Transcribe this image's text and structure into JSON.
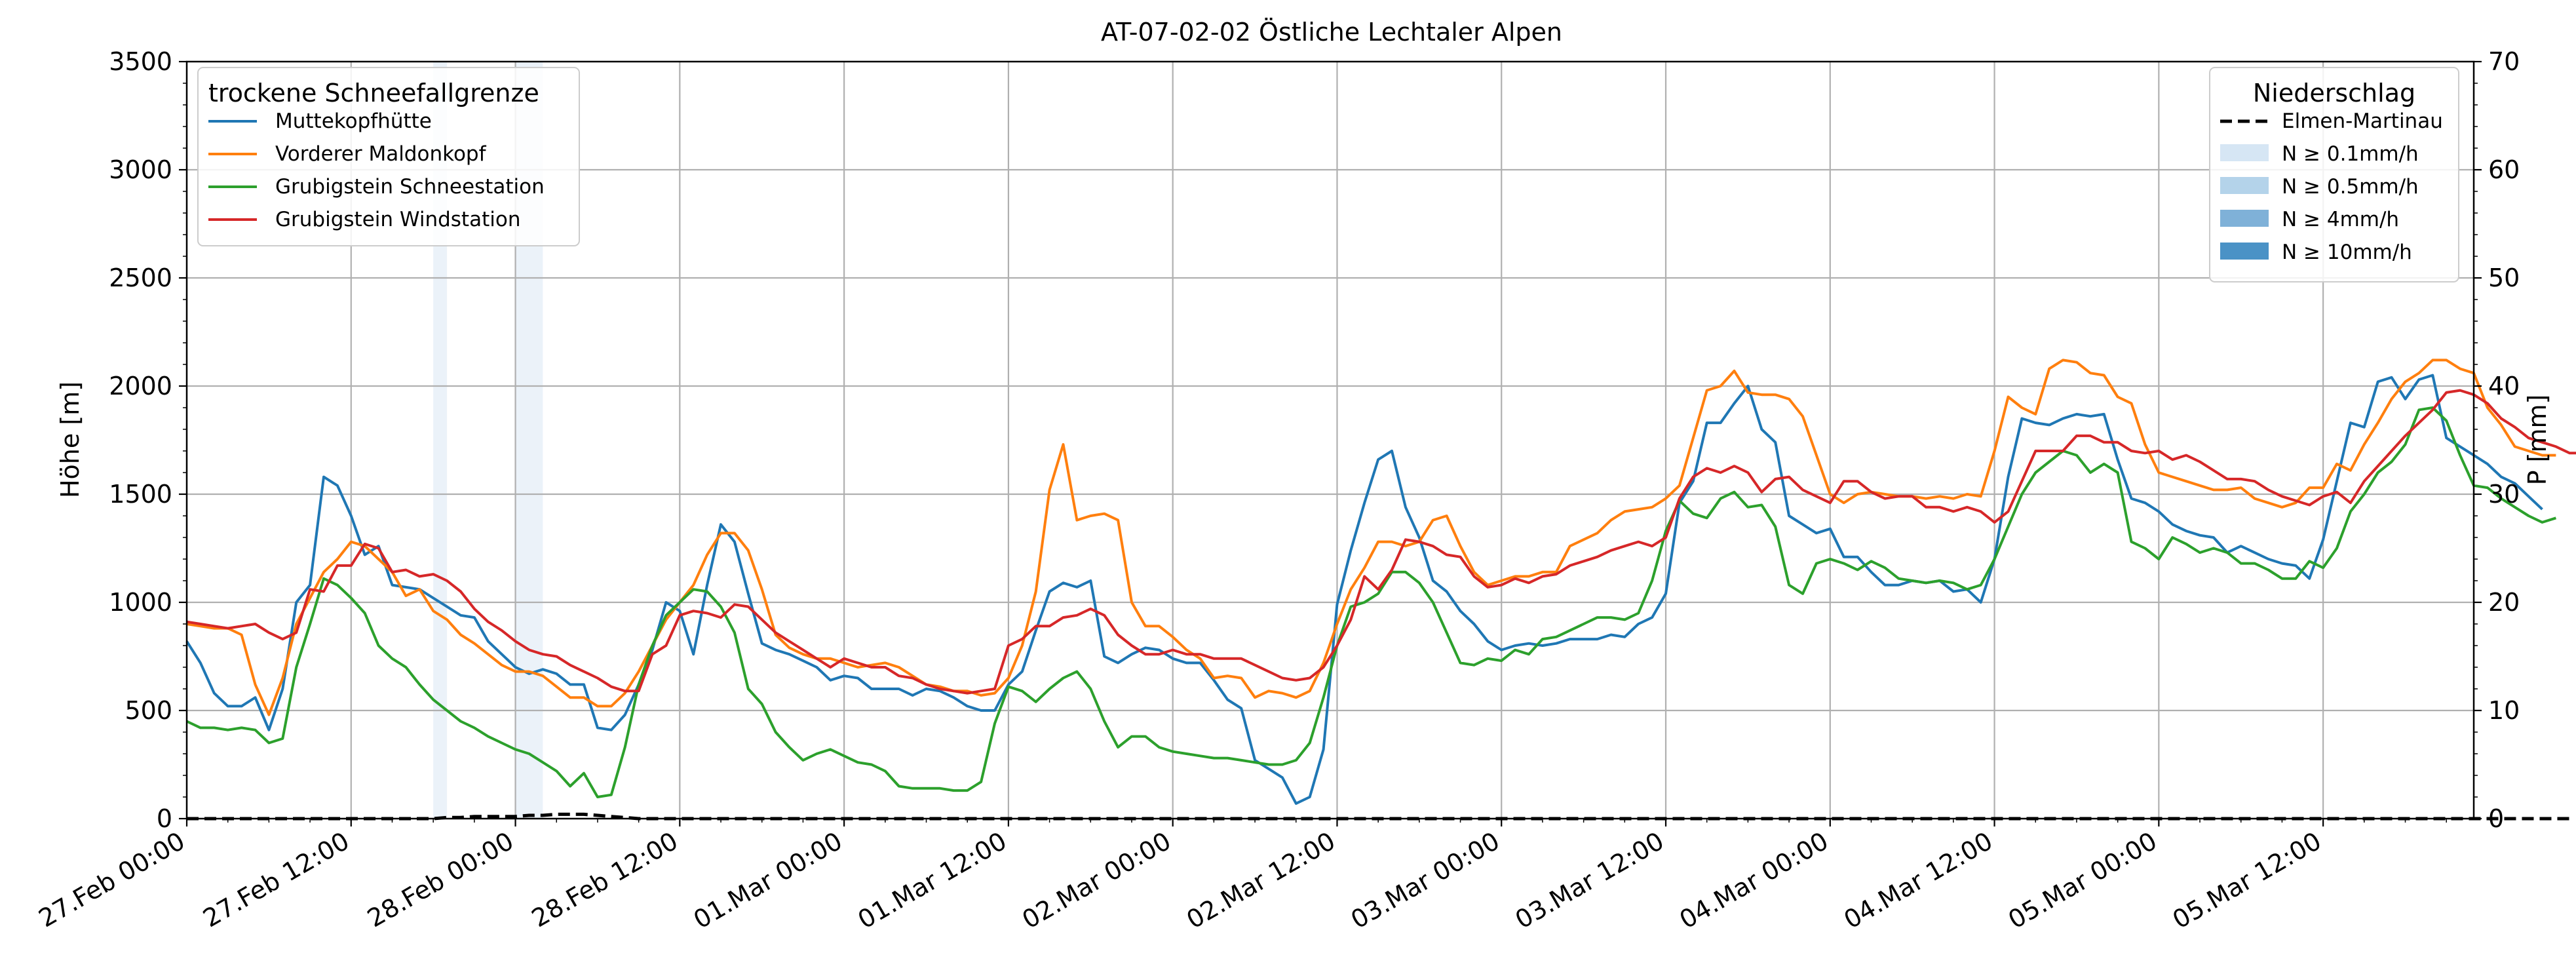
{
  "chart_data": {
    "type": "line",
    "title": "AT-07-02-02 Östliche Lechtaler Alpen",
    "ylabel": "Höhe [m]",
    "y2label": "P [mm]",
    "ylim": [
      0,
      3500
    ],
    "y2lim": [
      0,
      70
    ],
    "xlim_hours": [
      0,
      167
    ],
    "yticks": [
      "0",
      "500",
      "1000",
      "1500",
      "2000",
      "2500",
      "3000",
      "3500"
    ],
    "y2ticks": [
      "0",
      "10",
      "20",
      "30",
      "40",
      "50",
      "60",
      "70"
    ],
    "xticks": [
      "27.Feb 00:00",
      "27.Feb 12:00",
      "28.Feb 00:00",
      "28.Feb 12:00",
      "01.Mar 00:00",
      "01.Mar 12:00",
      "02.Mar 00:00",
      "02.Mar 12:00",
      "03.Mar 00:00",
      "03.Mar 12:00",
      "04.Mar 00:00",
      "04.Mar 12:00",
      "05.Mar 00:00",
      "05.Mar 12:00"
    ],
    "x_start": "27.Feb 00:00",
    "x_step_hours": 1,
    "grid": true,
    "legend_title": "trockene Schneefallgrenze",
    "legend_position": "upper-left",
    "legend2_title": "Niederschlag",
    "legend2_position": "upper-right",
    "series": [
      {
        "name": "Muttekopfhütte",
        "color": "#1f77b4",
        "values": [
          820,
          720,
          580,
          520,
          520,
          560,
          410,
          600,
          1000,
          1080,
          1580,
          1540,
          1400,
          1220,
          1260,
          1080,
          1070,
          1060,
          1020,
          980,
          940,
          930,
          820,
          760,
          700,
          670,
          690,
          670,
          620,
          620,
          420,
          410,
          480,
          620,
          780,
          1000,
          960,
          760,
          1080,
          1360,
          1280,
          1040,
          810,
          780,
          760,
          730,
          700,
          640,
          660,
          650,
          600,
          600,
          600,
          570,
          600,
          590,
          560,
          520,
          500,
          500,
          620,
          680,
          870,
          1050,
          1090,
          1070,
          1100,
          750,
          720,
          760,
          790,
          780,
          740,
          720,
          720,
          640,
          550,
          510,
          270,
          230,
          190,
          70,
          100,
          320,
          990,
          1240,
          1460,
          1660,
          1700,
          1440,
          1300,
          1100,
          1050,
          960,
          900,
          820,
          780,
          800,
          810,
          800,
          810,
          830,
          830,
          830,
          850,
          840,
          900,
          930,
          1040,
          1460,
          1560,
          1830,
          1830,
          1920,
          2000,
          1800,
          1740,
          1400,
          1360,
          1320,
          1340,
          1210,
          1210,
          1140,
          1080,
          1080,
          1100,
          1090,
          1100,
          1050,
          1060,
          1000,
          1200,
          1580,
          1850,
          1830,
          1820,
          1850,
          1870,
          1860,
          1870,
          1660,
          1480,
          1460,
          1420,
          1360,
          1330,
          1310,
          1300,
          1230,
          1260,
          1230,
          1200,
          1180,
          1170,
          1110,
          1290,
          1560,
          1830,
          1810,
          2020,
          2040,
          1940,
          2030,
          2050,
          1760,
          1720,
          1680,
          1640,
          1580,
          1550,
          1490,
          1430
        ]
      },
      {
        "name": "Vorderer Maldonkopf",
        "color": "#ff7f0e",
        "values": [
          900,
          890,
          880,
          880,
          850,
          620,
          480,
          650,
          900,
          1020,
          1140,
          1200,
          1280,
          1260,
          1200,
          1140,
          1030,
          1060,
          960,
          920,
          850,
          810,
          760,
          710,
          680,
          680,
          660,
          610,
          560,
          560,
          520,
          520,
          580,
          680,
          800,
          920,
          1000,
          1080,
          1220,
          1320,
          1320,
          1240,
          1060,
          850,
          790,
          760,
          740,
          740,
          720,
          700,
          710,
          720,
          700,
          660,
          620,
          610,
          590,
          590,
          570,
          580,
          650,
          800,
          1050,
          1520,
          1730,
          1380,
          1400,
          1410,
          1380,
          1000,
          890,
          890,
          840,
          780,
          740,
          650,
          660,
          650,
          560,
          590,
          580,
          560,
          590,
          720,
          900,
          1060,
          1160,
          1280,
          1280,
          1260,
          1280,
          1380,
          1400,
          1260,
          1140,
          1080,
          1100,
          1120,
          1120,
          1140,
          1140,
          1260,
          1290,
          1320,
          1380,
          1420,
          1430,
          1440,
          1480,
          1540,
          1760,
          1980,
          2000,
          2070,
          1970,
          1960,
          1960,
          1940,
          1860,
          1680,
          1500,
          1460,
          1500,
          1510,
          1500,
          1490,
          1490,
          1480,
          1490,
          1480,
          1500,
          1490,
          1700,
          1950,
          1900,
          1870,
          2080,
          2120,
          2110,
          2060,
          2050,
          1950,
          1920,
          1730,
          1600,
          1580,
          1560,
          1540,
          1520,
          1520,
          1530,
          1480,
          1460,
          1440,
          1460,
          1530,
          1530,
          1640,
          1610,
          1730,
          1830,
          1940,
          2020,
          2060,
          2120,
          2120,
          2080,
          2060,
          1900,
          1820,
          1720,
          1700,
          1680,
          1680
        ]
      },
      {
        "name": "Grubigstein Schneestation",
        "color": "#2ca02c",
        "values": [
          450,
          420,
          420,
          410,
          420,
          410,
          350,
          370,
          700,
          900,
          1110,
          1080,
          1020,
          950,
          800,
          740,
          700,
          620,
          550,
          500,
          450,
          420,
          380,
          350,
          320,
          300,
          260,
          220,
          150,
          210,
          100,
          110,
          330,
          620,
          800,
          940,
          1000,
          1060,
          1050,
          980,
          860,
          600,
          530,
          400,
          330,
          270,
          300,
          320,
          290,
          260,
          250,
          220,
          150,
          140,
          140,
          140,
          130,
          130,
          170,
          440,
          610,
          590,
          540,
          600,
          650,
          680,
          600,
          450,
          330,
          380,
          380,
          330,
          310,
          300,
          290,
          280,
          280,
          270,
          260,
          250,
          250,
          270,
          350,
          560,
          800,
          980,
          1000,
          1040,
          1140,
          1140,
          1090,
          1000,
          860,
          720,
          710,
          740,
          730,
          780,
          760,
          830,
          840,
          870,
          900,
          930,
          930,
          920,
          950,
          1100,
          1330,
          1470,
          1410,
          1390,
          1480,
          1510,
          1440,
          1450,
          1350,
          1080,
          1040,
          1180,
          1200,
          1180,
          1150,
          1190,
          1160,
          1110,
          1100,
          1090,
          1100,
          1090,
          1060,
          1080,
          1200,
          1350,
          1500,
          1600,
          1650,
          1700,
          1680,
          1600,
          1640,
          1600,
          1280,
          1250,
          1200,
          1300,
          1270,
          1230,
          1250,
          1230,
          1180,
          1180,
          1150,
          1110,
          1110,
          1190,
          1160,
          1250,
          1420,
          1500,
          1600,
          1650,
          1730,
          1890,
          1900,
          1840,
          1680,
          1540,
          1530,
          1480,
          1440,
          1400,
          1370,
          1390
        ]
      },
      {
        "name": "Grubigstein Windstation",
        "color": "#d62728",
        "values": [
          910,
          900,
          890,
          880,
          890,
          900,
          860,
          830,
          860,
          1060,
          1050,
          1170,
          1170,
          1270,
          1250,
          1140,
          1150,
          1120,
          1130,
          1100,
          1050,
          970,
          910,
          870,
          820,
          780,
          760,
          750,
          710,
          680,
          650,
          610,
          590,
          590,
          760,
          800,
          940,
          960,
          950,
          930,
          990,
          980,
          920,
          860,
          820,
          780,
          740,
          700,
          740,
          720,
          700,
          700,
          660,
          650,
          620,
          600,
          590,
          580,
          590,
          600,
          800,
          830,
          890,
          890,
          930,
          940,
          970,
          940,
          850,
          800,
          760,
          760,
          780,
          760,
          760,
          740,
          740,
          740,
          710,
          680,
          650,
          640,
          650,
          700,
          800,
          920,
          1120,
          1060,
          1150,
          1290,
          1280,
          1260,
          1220,
          1210,
          1120,
          1070,
          1080,
          1110,
          1090,
          1120,
          1130,
          1170,
          1190,
          1210,
          1240,
          1260,
          1280,
          1260,
          1300,
          1480,
          1580,
          1620,
          1600,
          1630,
          1600,
          1510,
          1570,
          1580,
          1520,
          1490,
          1460,
          1560,
          1560,
          1510,
          1480,
          1490,
          1490,
          1440,
          1440,
          1420,
          1440,
          1420,
          1370,
          1420,
          1560,
          1700,
          1700,
          1700,
          1770,
          1770,
          1740,
          1740,
          1700,
          1690,
          1700,
          1660,
          1680,
          1650,
          1610,
          1570,
          1570,
          1560,
          1520,
          1490,
          1470,
          1450,
          1490,
          1510,
          1460,
          1560,
          1630,
          1700,
          1770,
          1830,
          1890,
          1970,
          1980,
          1960,
          1920,
          1850,
          1810,
          1760,
          1740,
          1720,
          1690,
          1690
        ]
      },
      {
        "name": "Elmen-Martinau",
        "axis": "right",
        "color": "#000000",
        "dashed": true,
        "values": [
          0,
          0,
          0,
          0,
          0,
          0,
          0,
          0,
          0,
          0,
          0,
          0,
          0,
          0,
          0,
          0,
          0,
          0,
          0,
          0.1,
          0.1,
          0.2,
          0.2,
          0.2,
          0.2,
          0.3,
          0.3,
          0.4,
          0.4,
          0.4,
          0.3,
          0.2,
          0.1,
          0,
          0,
          0,
          0,
          0,
          0,
          0,
          0,
          0,
          0,
          0,
          0,
          0,
          0,
          0,
          0,
          0,
          0,
          0,
          0,
          0,
          0,
          0,
          0,
          0,
          0,
          0,
          0,
          0,
          0,
          0,
          0,
          0,
          0,
          0,
          0,
          0,
          0,
          0,
          0,
          0,
          0,
          0,
          0,
          0,
          0,
          0,
          0,
          0,
          0,
          0,
          0,
          0,
          0,
          0,
          0,
          0,
          0,
          0,
          0,
          0,
          0,
          0,
          0,
          0,
          0,
          0,
          0,
          0,
          0,
          0,
          0,
          0,
          0,
          0,
          0,
          0,
          0,
          0,
          0,
          0,
          0,
          0,
          0,
          0,
          0,
          0,
          0,
          0,
          0,
          0,
          0,
          0,
          0,
          0,
          0,
          0,
          0,
          0,
          0,
          0,
          0,
          0,
          0,
          0,
          0,
          0,
          0,
          0,
          0,
          0,
          0,
          0,
          0,
          0,
          0,
          0,
          0,
          0,
          0,
          0,
          0,
          0,
          0,
          0,
          0,
          0,
          0,
          0,
          0,
          0,
          0,
          0,
          0,
          0,
          0,
          0,
          0,
          0,
          0,
          0,
          0
        ]
      }
    ],
    "precip_bands": [
      {
        "from_hour": 18,
        "to_hour": 19,
        "level": "N ≥ 0.1mm/h",
        "color": "#c6dbef"
      },
      {
        "from_hour": 24,
        "to_hour": 26,
        "level": "N ≥ 0.1mm/h",
        "color": "#c6dbef"
      }
    ],
    "precip_legend": [
      {
        "label": "N ≥ 0.1mm/h",
        "color": "#d6e6f4"
      },
      {
        "label": "N ≥ 0.5mm/h",
        "color": "#b4d3ea"
      },
      {
        "label": "N ≥ 4mm/h",
        "color": "#7fb1d8"
      },
      {
        "label": "N ≥ 10mm/h",
        "color": "#4a92c6"
      }
    ]
  }
}
